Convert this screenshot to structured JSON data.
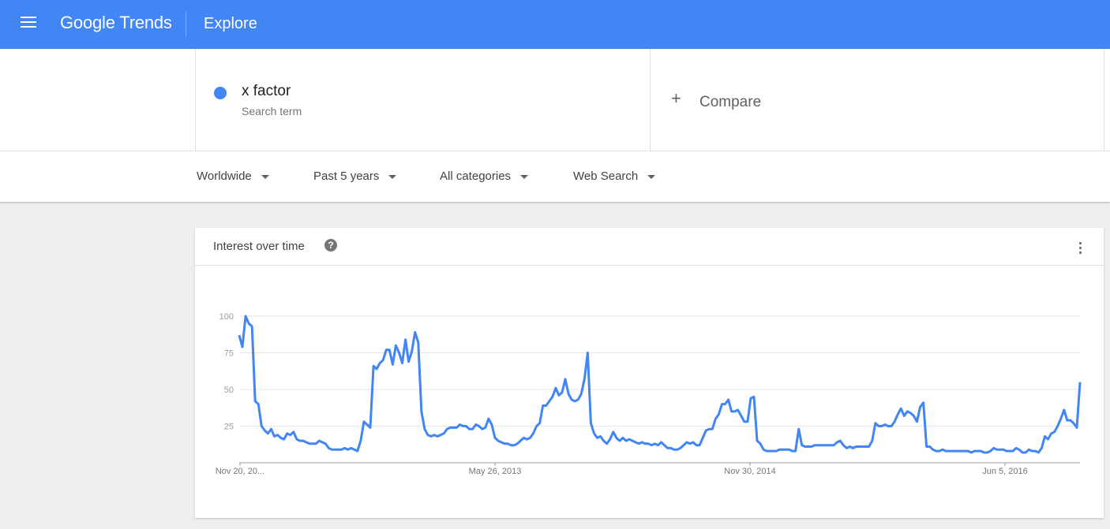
{
  "header": {
    "logo_google": "Google",
    "logo_trends": "Trends",
    "title": "Explore",
    "menu_icon": "hamburger-menu-icon"
  },
  "search": {
    "term": "x factor",
    "term_type": "Search term",
    "term_color": "#4285f4",
    "compare_label": "Compare",
    "compare_icon": "plus-icon"
  },
  "filters": {
    "region": "Worldwide",
    "time": "Past 5 years",
    "category": "All categories",
    "property": "Web Search"
  },
  "card": {
    "title": "Interest over time",
    "help_icon": "help-circle-icon",
    "menu_icon": "more-vert-icon"
  },
  "chart_data": {
    "type": "line",
    "title": "",
    "xlabel": "",
    "ylabel": "",
    "ylim": [
      0,
      100
    ],
    "yticks": [
      25,
      50,
      75,
      100
    ],
    "xtick_labels": [
      "Nov 20, 20...",
      "May 26, 2013",
      "Nov 30, 2014",
      "Jun 5, 2016"
    ],
    "grid": true,
    "color": "#4285f4",
    "series": [
      {
        "values": [
          87,
          79,
          100,
          95,
          93,
          42,
          40,
          25,
          22,
          20,
          23,
          18,
          19,
          17,
          16,
          20,
          19,
          21,
          16,
          15,
          15,
          14,
          13,
          13,
          13,
          15,
          14,
          13,
          10,
          9,
          9,
          9,
          9,
          10,
          9,
          10,
          9,
          8,
          15,
          28,
          26,
          24,
          66,
          64,
          68,
          70,
          77,
          77,
          67,
          80,
          75,
          68,
          84,
          69,
          76,
          89,
          82,
          35,
          23,
          19,
          18,
          19,
          18,
          19,
          20,
          23,
          24,
          24,
          24,
          26,
          25,
          25,
          23,
          23,
          26,
          25,
          23,
          24,
          30,
          26,
          17,
          15,
          14,
          13,
          13,
          12,
          12,
          13,
          15,
          17,
          16,
          17,
          20,
          25,
          27,
          39,
          39,
          42,
          45,
          51,
          46,
          48,
          57,
          47,
          43,
          42,
          43,
          47,
          57,
          75,
          27,
          20,
          17,
          18,
          15,
          13,
          16,
          21,
          17,
          15,
          17,
          15,
          16,
          15,
          14,
          13,
          14,
          13,
          13,
          12,
          13,
          12,
          14,
          12,
          10,
          10,
          9,
          9,
          10,
          12,
          14,
          13,
          14,
          12,
          12,
          17,
          22,
          23,
          23,
          30,
          33,
          40,
          40,
          43,
          35,
          35,
          36,
          32,
          28,
          28,
          44,
          45,
          15,
          13,
          9,
          8,
          8,
          8,
          8,
          9,
          9,
          9,
          9,
          8,
          8,
          23,
          12,
          11,
          11,
          11,
          12,
          12,
          12,
          12,
          12,
          12,
          12,
          14,
          15,
          12,
          10,
          11,
          10,
          11,
          11,
          11,
          11,
          11,
          15,
          27,
          25,
          25,
          26,
          25,
          25,
          28,
          33,
          37,
          32,
          35,
          34,
          32,
          28,
          38,
          41,
          11,
          11,
          9,
          8,
          8,
          9,
          8,
          8,
          8,
          8,
          8,
          8,
          8,
          8,
          7,
          8,
          8,
          8,
          7,
          7,
          8,
          10,
          9,
          9,
          9,
          8,
          8,
          8,
          10,
          9,
          7,
          7,
          9,
          8,
          8,
          7,
          10,
          18,
          16,
          20,
          21,
          25,
          30,
          36,
          29,
          29,
          27,
          24,
          55
        ]
      }
    ]
  }
}
